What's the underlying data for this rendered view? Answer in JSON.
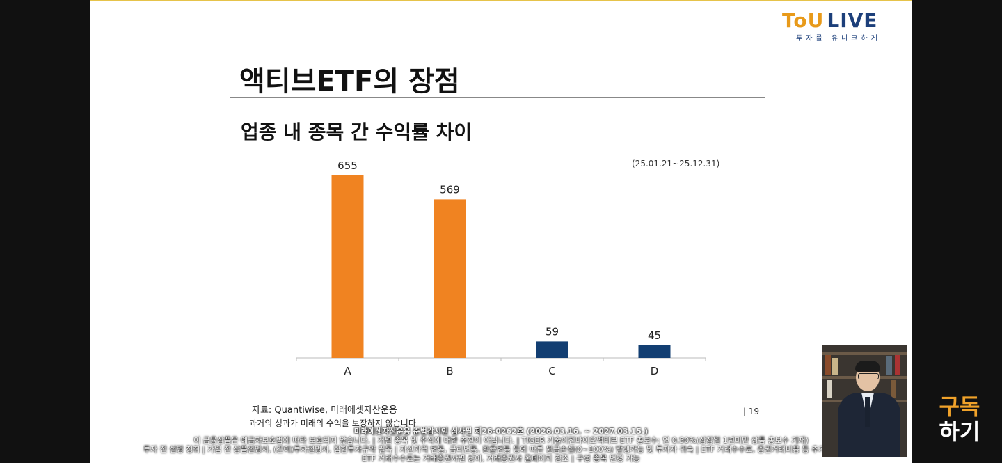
{
  "logo": {
    "main_left": "ToU",
    "main_right": "LIVE",
    "tagline": "투자를 유니크하게"
  },
  "slide": {
    "title": "액티브ETF의 장점",
    "subtitle": "업종 내 종목 간 수익률 차이",
    "period": "(25.01.21~25.12.31)",
    "source": "자료: Quantiwise, 미래에셋자산운용",
    "disclaimer": "과거의 성과가 미래의 수익을 보장하지 않습니다",
    "page_number": "| 19"
  },
  "chart_data": {
    "type": "bar",
    "categories": [
      "A",
      "B",
      "C",
      "D"
    ],
    "values": [
      655,
      569,
      59,
      45
    ],
    "colors": [
      "#f08321",
      "#f08321",
      "#123e72",
      "#123e72"
    ],
    "ylim": [
      0,
      700
    ],
    "grid": false,
    "data_labels": true
  },
  "legal": {
    "line1": "미래에셋자산운용 준법감시인 심사필 제26-0262호 (2026.03.16. ~ 2027.03.15.)",
    "line2": "이 금융상품은 예금자보호법에 따라 보호되지 않습니다. | 개별 종목 및 주식에 대한 추천이 아닙니다. | TIGER 기술이전바이오액티브 ETF 총보수: 연 0.50%(상장일 1년미만 상품 총보수 기재)",
    "line3": "투자 전 설명 청취 | 가입 전 상품설명서, (간이)투자설명서, 집합투자규약 필독 | 자산가격 변동, 금리변동, 환율변동 등에 따른 원금손실(0~100%) 발생가능 및 투자자 귀속 | ETF 거래수수료, 증권거래비용 등 추가 발생 가능",
    "line4": "ETF 거래수수료는 거래증권사별 상이, 거래증권사 홈페이지 참조 | 구성 종목 변경 가능"
  },
  "subscribe": {
    "line1": "구독",
    "line2": "하기"
  },
  "colors": {
    "accent_orange": "#f08321",
    "accent_navy": "#123e72",
    "frame_gold": "#e6c34a"
  }
}
